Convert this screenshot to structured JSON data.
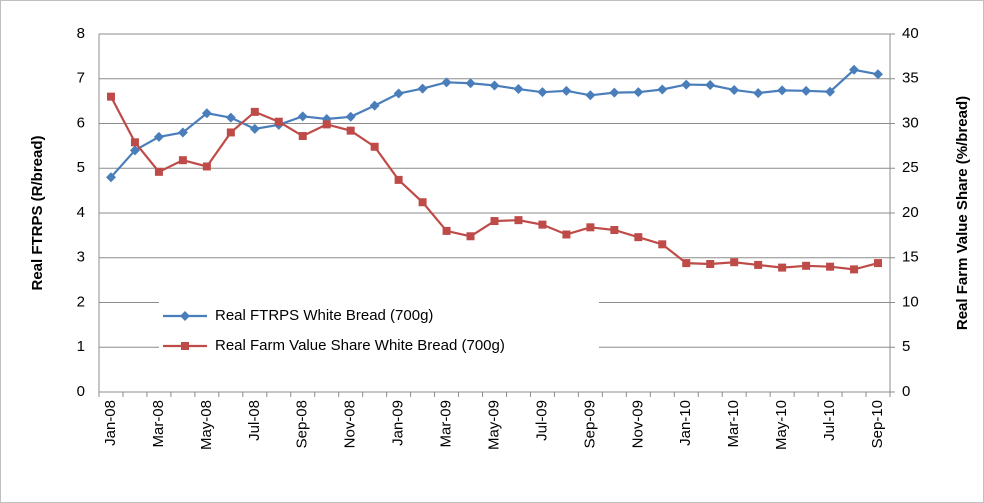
{
  "chart_data": {
    "type": "line",
    "y_label": "Real FTRPS (R/bread)",
    "y2_label": "Real Farm Value Share (%/bread)",
    "categories": [
      "Jan-08",
      null,
      "Mar-08",
      null,
      "May-08",
      null,
      "Jul-08",
      null,
      "Sep-08",
      null,
      "Nov-08",
      null,
      "Jan-09",
      null,
      "Mar-09",
      null,
      "May-09",
      null,
      "Jul-09",
      null,
      "Sep-09",
      null,
      "Nov-09",
      null,
      "Jan-10",
      null,
      "Mar-10",
      null,
      "May-10",
      null,
      "Jul-10",
      null,
      "Sep-10"
    ],
    "series": [
      {
        "name": "Real FTRPS White Bread (700g)",
        "color": "#4a7ebb",
        "marker": "diamond",
        "values": [
          4.8,
          5.4,
          5.7,
          5.8,
          6.23,
          6.13,
          5.88,
          5.97,
          6.16,
          6.1,
          6.15,
          6.4,
          6.67,
          6.78,
          6.92,
          6.9,
          6.85,
          6.77,
          6.7,
          6.73,
          6.63,
          6.69,
          6.7,
          6.76,
          6.87,
          6.86,
          6.75,
          6.68,
          6.74,
          6.73,
          6.71,
          7.2,
          7.1
        ]
      },
      {
        "name": "Real Farm Value Share White Bread (700g)",
        "color": "#be4b48",
        "marker": "square",
        "axis": "y2",
        "values": [
          33,
          27.9,
          24.6,
          25.9,
          25.2,
          29,
          31.3,
          30.2,
          28.6,
          29.9,
          29.2,
          27.4,
          23.7,
          21.2,
          18,
          17.4,
          19.1,
          19.2,
          18.7,
          17.6,
          18.4,
          18.1,
          17.3,
          16.5,
          14.4,
          14.3,
          14.5,
          14.2,
          13.9,
          14.1,
          14,
          13.7,
          14.4
        ]
      }
    ],
    "ylim": [
      0,
      8
    ],
    "yticks": [
      0,
      1,
      2,
      3,
      4,
      5,
      6,
      7,
      8
    ],
    "y2lim": [
      0,
      40
    ],
    "y2ticks": [
      0,
      5,
      10,
      15,
      20,
      25,
      30,
      35,
      40
    ],
    "grid": true,
    "legend": "lower left"
  }
}
